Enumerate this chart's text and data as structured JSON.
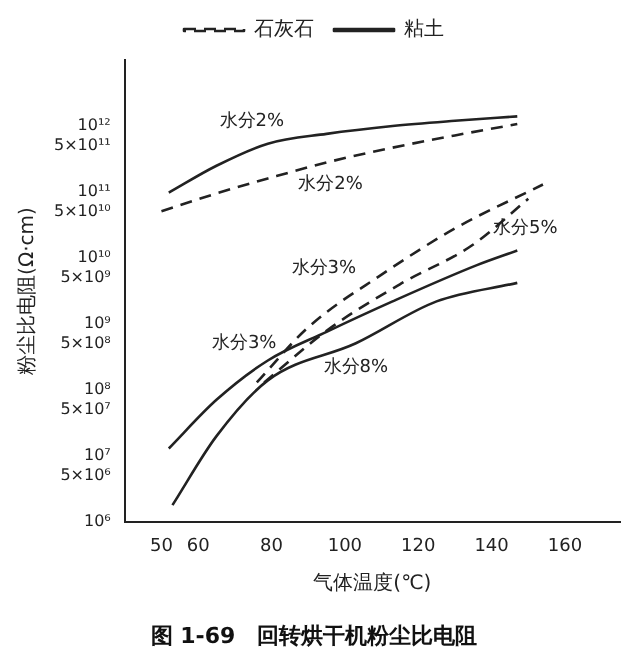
{
  "chart_data": {
    "type": "line",
    "title": "图 1-69　回转烘干机粉尘比电阻",
    "xlabel": "气体温度(℃)",
    "ylabel": "粉尘比电阻(Ω·cm)",
    "log": "y",
    "legend": "top",
    "marker": "none",
    "grid": false,
    "xlim": [
      40,
      175
    ],
    "xticks": [
      50,
      60,
      80,
      100,
      120,
      140,
      160
    ],
    "ylim": [
      1000000,
      10000000000000
    ],
    "yticks": [
      {
        "value": 1000000,
        "label": "10⁶"
      },
      {
        "value": 5000000,
        "label": "5×10⁶"
      },
      {
        "value": 10000000,
        "label": "10⁷"
      },
      {
        "value": 50000000,
        "label": "5×10⁷"
      },
      {
        "value": 100000000,
        "label": "10⁸"
      },
      {
        "value": 500000000,
        "label": "5×10⁸"
      },
      {
        "value": 1000000000,
        "label": "10⁹"
      },
      {
        "value": 5000000000,
        "label": "5×10⁹"
      },
      {
        "value": 10000000000,
        "label": "10¹⁰"
      },
      {
        "value": 50000000000,
        "label": "5×10¹⁰"
      },
      {
        "value": 100000000000,
        "label": "10¹¹"
      },
      {
        "value": 500000000000,
        "label": "5×10¹¹"
      },
      {
        "value": 1000000000000,
        "label": "10¹²"
      }
    ],
    "series": [
      {
        "name": "石灰石",
        "color": "#222222",
        "line_style": "dashed",
        "x": [
          50,
          65,
          79,
          95,
          113,
          130,
          147
        ],
        "values": [
          51000000000,
          95000000000,
          160000000000,
          280000000000,
          470000000000,
          720000000000,
          1070000000000
        ]
      },
      {
        "name": "粘土",
        "color": "#222222",
        "line_style": "solid",
        "x": [
          52,
          65,
          79,
          95,
          113,
          130,
          147
        ],
        "values": [
          98000000000,
          250000000000,
          540000000000,
          760000000000,
          1000000000000,
          1200000000000,
          1400000000000
        ]
      },
      {
        "color": "#222222",
        "line_style": "dashed",
        "x": [
          76,
          90,
          110,
          130,
          154
        ],
        "values": [
          130000000,
          890000000,
          5600000000,
          28000000000,
          130000000000
        ]
      },
      {
        "color": "#222222",
        "line_style": "dashed",
        "x": [
          78,
          95,
          115,
          135,
          150
        ],
        "values": [
          130000000,
          790000000,
          4000000000,
          16000000000,
          79000000000
        ]
      },
      {
        "color": "#222222",
        "line_style": "solid",
        "x": [
          52,
          65,
          79,
          95,
          113,
          136,
          147
        ],
        "values": [
          13000000,
          71000000,
          280000000,
          760000000,
          2200000000,
          7800000000,
          13000000000
        ]
      },
      {
        "color": "#222222",
        "line_style": "solid",
        "x": [
          53,
          65,
          79,
          103,
          125,
          147
        ],
        "values": [
          1800000,
          20000000,
          140000000,
          510000000,
          2200000000,
          4200000000
        ]
      }
    ],
    "annotations": [
      {
        "text": "水分2%",
        "x": 79,
        "y": 540000000000
      },
      {
        "text": "水分2%",
        "x": 95,
        "y": 280000000000
      },
      {
        "text": "水分3%",
        "x": 90,
        "y": 890000000
      },
      {
        "text": "水分3%",
        "x": 115,
        "y": 4000000000
      },
      {
        "text": "水分5%",
        "x": 147,
        "y": 13000000000
      },
      {
        "text": "水分8%",
        "x": 103,
        "y": 510000000
      }
    ]
  }
}
